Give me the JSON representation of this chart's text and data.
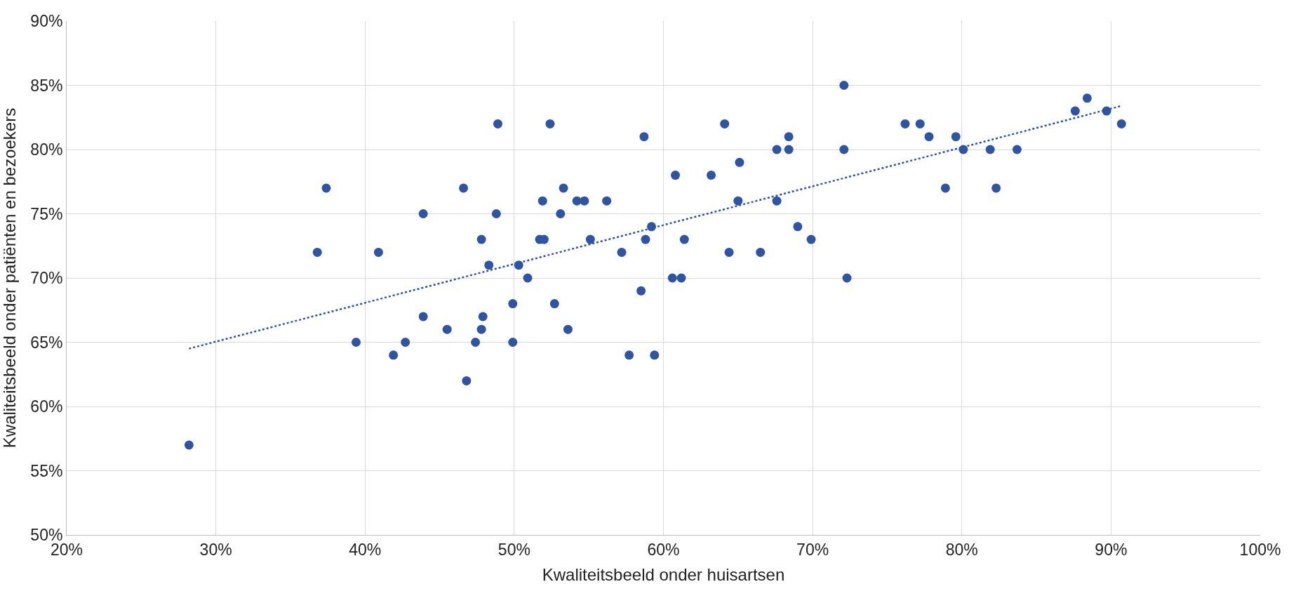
{
  "chart_data": {
    "type": "scatter",
    "xlabel": "Kwaliteitsbeeld onder huisartsen",
    "ylabel": "Kwaliteitsbeeld onder patiënten en bezoekers",
    "xlim": [
      20,
      100
    ],
    "xticks": [
      {
        "value": 20,
        "label": "20%"
      },
      {
        "value": 30,
        "label": "30%"
      },
      {
        "value": 40,
        "label": "40%"
      },
      {
        "value": 50,
        "label": "50%"
      },
      {
        "value": 60,
        "label": "60%"
      },
      {
        "value": 70,
        "label": "70%"
      },
      {
        "value": 80,
        "label": "80%"
      },
      {
        "value": 90,
        "label": "90%"
      },
      {
        "value": 100,
        "label": "100%"
      }
    ],
    "ylim": [
      50,
      90
    ],
    "yticks": [
      {
        "value": 50,
        "label": "50%"
      },
      {
        "value": 55,
        "label": "55%"
      },
      {
        "value": 60,
        "label": "60%"
      },
      {
        "value": 65,
        "label": "65%"
      },
      {
        "value": 70,
        "label": "70%"
      },
      {
        "value": 75,
        "label": "75%"
      },
      {
        "value": 80,
        "label": "80%"
      },
      {
        "value": 85,
        "label": "85%"
      },
      {
        "value": 90,
        "label": "90%"
      }
    ],
    "grid": true,
    "series": [
      {
        "marker": "circle",
        "color": "#2e55a3",
        "x": [
          28.2,
          36.8,
          37.4,
          39.4,
          40.9,
          41.9,
          42.7,
          43.9,
          43.9,
          45.5,
          46.6,
          46.8,
          47.4,
          47.8,
          47.8,
          47.9,
          48.3,
          48.8,
          48.9,
          49.9,
          49.9,
          50.3,
          50.9,
          51.7,
          51.9,
          52.0,
          52.4,
          52.7,
          53.1,
          53.3,
          53.6,
          54.2,
          54.7,
          55.1,
          56.2,
          57.2,
          57.7,
          58.5,
          58.7,
          58.8,
          59.2,
          59.4,
          60.6,
          60.8,
          61.2,
          61.4,
          63.2,
          64.1,
          64.4,
          65.0,
          65.1,
          66.5,
          67.6,
          67.6,
          68.4,
          68.4,
          69.0,
          69.9,
          72.1,
          72.1,
          72.3,
          76.2,
          77.2,
          77.8,
          78.9,
          79.6,
          80.1,
          81.9,
          82.3,
          83.7,
          87.6,
          88.4,
          89.7,
          90.7
        ],
        "values": [
          57,
          72,
          77,
          65,
          72,
          64,
          65,
          75,
          67,
          66,
          77,
          62,
          65,
          73,
          66,
          67,
          71,
          75,
          82,
          68,
          65,
          71,
          70,
          73,
          76,
          73,
          82,
          68,
          75,
          77,
          66,
          76,
          76,
          73,
          76,
          72,
          64,
          69,
          81,
          73,
          74,
          64,
          70,
          78,
          70,
          73,
          78,
          82,
          72,
          76,
          79,
          72,
          80,
          76,
          81,
          80,
          74,
          73,
          80,
          85,
          70,
          82,
          82,
          81,
          77,
          81,
          80,
          80,
          77,
          80,
          83,
          84,
          83,
          82
        ]
      },
      {
        "type": "line",
        "line_style": "dotted",
        "color": "#2e55a3",
        "x": [
          28.2,
          90.7
        ],
        "values": [
          64.5,
          83.4
        ]
      }
    ]
  }
}
